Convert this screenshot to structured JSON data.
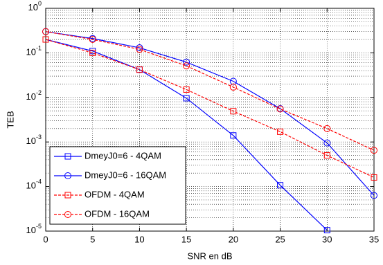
{
  "chart_data": {
    "type": "line",
    "x_label": "SNR en dB",
    "y_label": "TEB",
    "x": [
      0,
      5,
      10,
      15,
      20,
      25,
      30,
      35
    ],
    "series": [
      {
        "name": "DmeyJ0=6 - 4QAM",
        "color": "#0000ff",
        "marker": "square",
        "dash": false,
        "values": [
          0.2,
          0.11,
          0.042,
          0.0096,
          0.0014,
          0.000107,
          1.05e-05,
          null
        ]
      },
      {
        "name": "DmeyJ0=6 - 16QAM",
        "color": "#0000ff",
        "marker": "circle",
        "dash": false,
        "values": [
          0.3,
          0.21,
          0.13,
          0.062,
          0.023,
          0.0056,
          0.00095,
          6.3e-05
        ]
      },
      {
        "name": "OFDM - 4QAM",
        "color": "#ff0000",
        "marker": "square",
        "dash": true,
        "values": [
          0.2,
          0.1,
          0.042,
          0.015,
          0.0049,
          0.0017,
          0.0005,
          0.00016
        ]
      },
      {
        "name": "OFDM - 16QAM",
        "color": "#ff0000",
        "marker": "circle",
        "dash": true,
        "values": [
          0.3,
          0.2,
          0.12,
          0.051,
          0.017,
          0.0055,
          0.002,
          0.00065
        ]
      }
    ],
    "xlim": [
      0,
      35
    ],
    "xticks": [
      0,
      5,
      10,
      15,
      20,
      25,
      30,
      35
    ],
    "ylim": [
      1e-05,
      1
    ],
    "ylog": true,
    "yticks": [
      {
        "value": 1e-05,
        "label": "10^-5"
      },
      {
        "value": 0.0001,
        "label": "10^-4"
      },
      {
        "value": 0.001,
        "label": "10^-3"
      },
      {
        "value": 0.01,
        "label": "10^-2"
      },
      {
        "value": 0.1,
        "label": "10^-1"
      },
      {
        "value": 1,
        "label": "10^0"
      }
    ],
    "grid": true,
    "minor_grid": true,
    "legend": "lower left"
  }
}
